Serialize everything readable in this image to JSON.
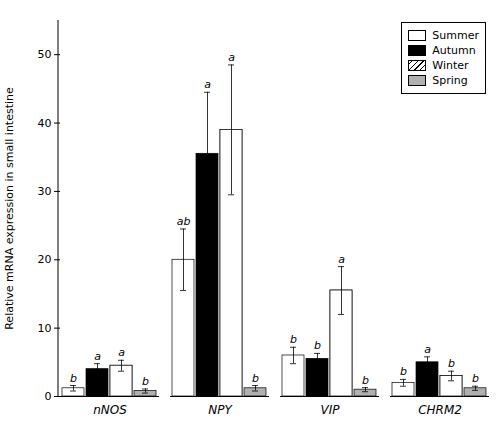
{
  "chart_data": {
    "type": "bar",
    "categories": [
      "nNOS",
      "NPY",
      "VIP",
      "CHRM2"
    ],
    "series": [
      {
        "name": "Summer",
        "color": "#ffffff",
        "values": [
          1.2,
          20.0,
          6.0,
          2.0
        ],
        "errors": [
          0.4,
          4.5,
          1.2,
          0.5
        ],
        "sig_labels": [
          "b",
          "ab",
          "b",
          "b"
        ]
      },
      {
        "name": "Autumn",
        "color": "#000000",
        "values": [
          4.0,
          35.5,
          5.5,
          5.0
        ],
        "errors": [
          0.8,
          9.0,
          0.8,
          0.8
        ],
        "sig_labels": [
          "a",
          "a",
          "b",
          "a"
        ]
      },
      {
        "name": "Winter",
        "color": "#ffffff",
        "values": [
          4.5,
          39.0,
          15.5,
          3.0
        ],
        "errors": [
          0.8,
          9.5,
          3.5,
          0.7
        ],
        "sig_labels": [
          "a",
          "a",
          "a",
          "b"
        ]
      },
      {
        "name": "Spring",
        "color": "#b0b0b0",
        "values": [
          0.8,
          1.2,
          1.0,
          1.2
        ],
        "errors": [
          0.3,
          0.4,
          0.3,
          0.3
        ],
        "sig_labels": [
          "b",
          "b",
          "b",
          "b"
        ]
      }
    ],
    "ylabel": "Relative mRNA expression in small intestine",
    "ylim": [
      0,
      55
    ],
    "yticks": [
      0,
      10,
      20,
      30,
      40,
      50
    ],
    "grid": false,
    "legend": "upper right"
  }
}
